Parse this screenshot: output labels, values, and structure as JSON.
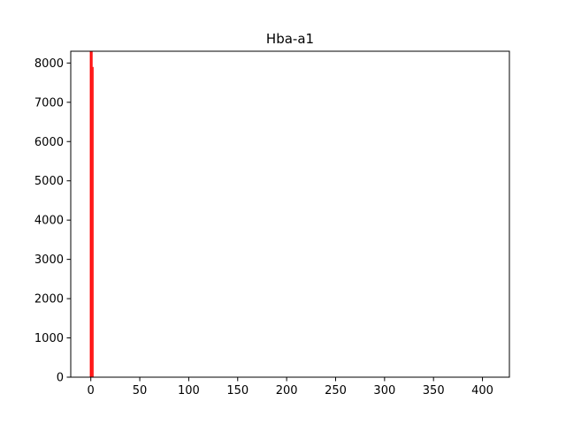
{
  "chart_data": {
    "type": "bar",
    "title": "Hba-a1",
    "xlabel": "",
    "ylabel": "",
    "xlim": [
      -20.5,
      427.5
    ],
    "ylim": [
      0,
      8300
    ],
    "x_ticks": [
      0,
      50,
      100,
      150,
      200,
      250,
      300,
      350,
      400
    ],
    "y_ticks": [
      0,
      1000,
      2000,
      3000,
      4000,
      5000,
      6000,
      7000,
      8000
    ],
    "grid": false,
    "legend": "none",
    "bar_color": "#ff0000",
    "bins": [
      {
        "x_start": -1.0,
        "x_end": 1.0,
        "value": 8300
      },
      {
        "x_start": 1.0,
        "x_end": 1.8,
        "value": 8300
      },
      {
        "x_start": 1.8,
        "x_end": 2.8,
        "value": 7900
      }
    ]
  }
}
